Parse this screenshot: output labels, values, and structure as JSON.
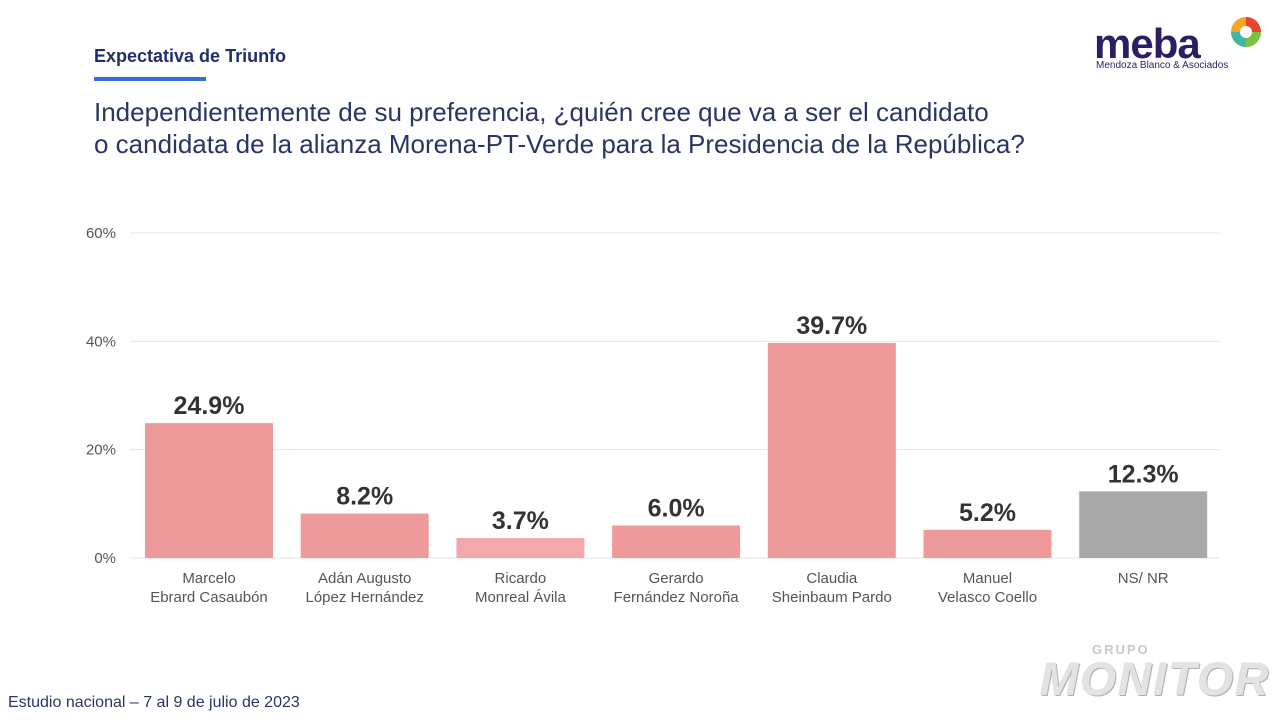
{
  "header": {
    "section_label": "Expectativa de Triunfo",
    "question_line1": "Independientemente de su preferencia, ¿quién cree que va a ser el candidato",
    "question_line2": "o candidata de la alianza Morena-PT-Verde para la Presidencia de la República?"
  },
  "logo": {
    "word": "meba",
    "tagline": "Mendoza Blanco & Asociados"
  },
  "footer": {
    "text": "Estudio nacional – 7 al 9 de julio de 2023"
  },
  "watermark": {
    "small": "GRUPO",
    "big": "MONITOR"
  },
  "colors": {
    "bar": "#ee9a9a",
    "bar_light": "#f3a9a9",
    "bar_gray": "#a9a9a9",
    "grid": "#e6e6e6",
    "tick_text": "#555555",
    "value_text": "#333333",
    "category_text": "#555555"
  },
  "chart_data": {
    "type": "bar",
    "title": "",
    "xlabel": "",
    "ylabel": "",
    "ylim": [
      0,
      60
    ],
    "yticks": [
      0,
      20,
      40,
      60
    ],
    "ytick_labels": [
      "0%",
      "20%",
      "40%",
      "60%"
    ],
    "grid": true,
    "categories": [
      [
        "Marcelo",
        "Ebrard Casaubón"
      ],
      [
        "Adán Augusto",
        "López Hernández"
      ],
      [
        "Ricardo",
        "Monreal Ávila"
      ],
      [
        "Gerardo",
        "Fernández Noroña"
      ],
      [
        "Claudia",
        "Sheinbaum Pardo"
      ],
      [
        "Manuel",
        "Velasco Coello"
      ],
      [
        "NS/ NR"
      ]
    ],
    "values": [
      24.9,
      8.2,
      3.7,
      6.0,
      39.7,
      5.2,
      12.3
    ],
    "value_labels": [
      "24.9%",
      "8.2%",
      "3.7%",
      "6.0%",
      "39.7%",
      "5.2%",
      "12.3%"
    ],
    "bar_color_keys": [
      "bar",
      "bar",
      "bar_light",
      "bar",
      "bar",
      "bar",
      "bar_gray"
    ]
  }
}
